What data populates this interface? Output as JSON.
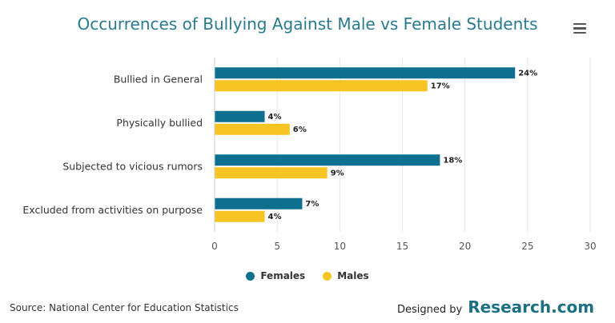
{
  "title": "Occurrences of Bullying Against Male vs Female Students",
  "menu": {
    "icon": "hamburger-menu-icon"
  },
  "colors": {
    "females": "#0e6f8f",
    "males": "#f7c523",
    "title": "#2a7a8e",
    "grid": "#e6e6e6"
  },
  "chart_data": {
    "type": "bar",
    "orientation": "horizontal",
    "categories": [
      "Bullied in General",
      "Physically bullied",
      "Subjected to vicious rumors",
      "Excluded from activities on purpose"
    ],
    "series": [
      {
        "name": "Females",
        "values": [
          24,
          4,
          18,
          7
        ],
        "labels": [
          "24%",
          "4%",
          "18%",
          "7%"
        ]
      },
      {
        "name": "Males",
        "values": [
          17,
          6,
          9,
          4
        ],
        "labels": [
          "17%",
          "6%",
          "9%",
          "4%"
        ]
      }
    ],
    "xticks": [
      "0",
      "5",
      "10",
      "15",
      "20",
      "25",
      "30"
    ],
    "xlim": [
      0,
      30
    ],
    "grid": true,
    "legend_position": "bottom-center"
  },
  "legend": {
    "females": "Females",
    "males": "Males"
  },
  "footer": {
    "source": "Source: National Center for Education Statistics",
    "designed_by": "Designed by",
    "brand": "Research.com"
  }
}
